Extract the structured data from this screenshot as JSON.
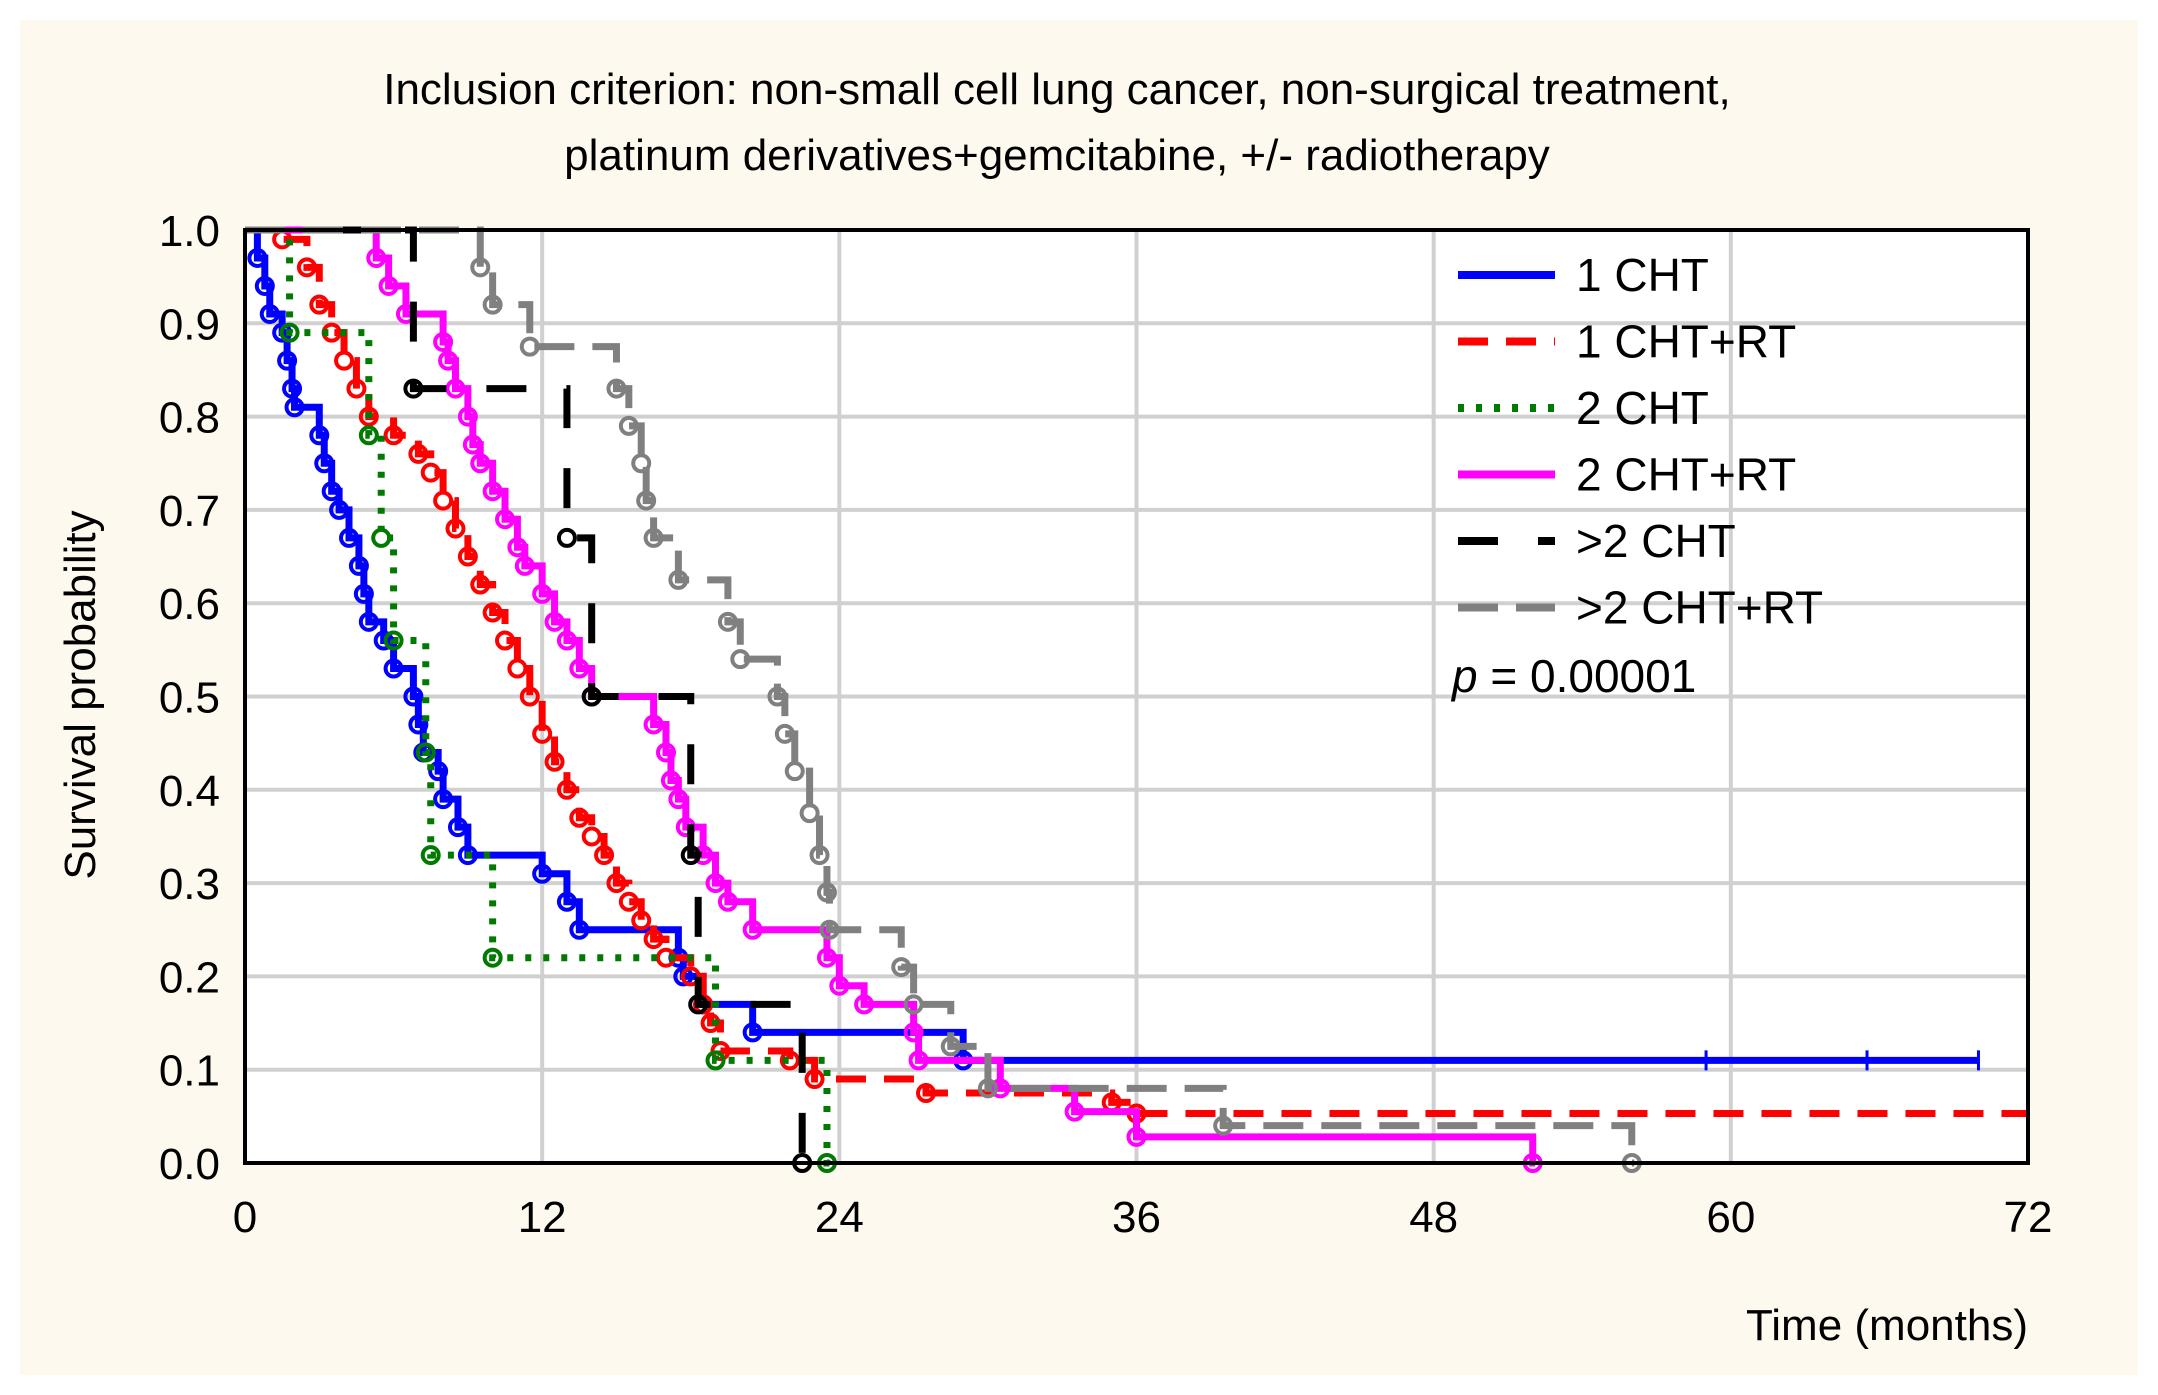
{
  "chart_data": {
    "type": "line",
    "title_lines": [
      "Inclusion criterion: non-small cell lung cancer, non-surgical treatment,",
      "platinum derivatives+gemcitabine, +/- radiotherapy"
    ],
    "xlabel": "Time (months)",
    "ylabel": "Survival probability",
    "xlim": [
      0,
      72
    ],
    "ylim": [
      0,
      1
    ],
    "xticks": [
      "0",
      "12",
      "24",
      "36",
      "48",
      "60",
      "72"
    ],
    "yticks": [
      "0.0",
      "0.1",
      "0.2",
      "0.3",
      "0.4",
      "0.5",
      "0.6",
      "0.7",
      "0.8",
      "0.9",
      "1.0"
    ],
    "grid": true,
    "legend_position": "top-right",
    "annotation": {
      "p_label": "p",
      "p_value": " = 0.00001"
    },
    "series": [
      {
        "name": "1 CHT",
        "color": "#0000ff",
        "dash": "",
        "steps": [
          [
            0,
            1
          ],
          [
            0.5,
            0.97
          ],
          [
            0.8,
            0.94
          ],
          [
            1,
            0.91
          ],
          [
            1.5,
            0.89
          ],
          [
            1.7,
            0.86
          ],
          [
            1.9,
            0.83
          ],
          [
            2,
            0.81
          ],
          [
            3,
            0.78
          ],
          [
            3.2,
            0.75
          ],
          [
            3.5,
            0.72
          ],
          [
            3.8,
            0.7
          ],
          [
            4.2,
            0.67
          ],
          [
            4.6,
            0.64
          ],
          [
            4.8,
            0.61
          ],
          [
            5,
            0.58
          ],
          [
            5.6,
            0.56
          ],
          [
            6,
            0.53
          ],
          [
            6.8,
            0.5
          ],
          [
            7,
            0.47
          ],
          [
            7.2,
            0.44
          ],
          [
            7.8,
            0.42
          ],
          [
            8,
            0.39
          ],
          [
            8.6,
            0.36
          ],
          [
            9,
            0.33
          ],
          [
            12,
            0.31
          ],
          [
            13,
            0.28
          ],
          [
            13.5,
            0.25
          ],
          [
            17.5,
            0.22
          ],
          [
            17.7,
            0.2
          ],
          [
            18.5,
            0.17
          ],
          [
            20.5,
            0.14
          ],
          [
            29,
            0.11
          ],
          [
            70,
            0.11
          ]
        ],
        "censor": [
          59,
          65.5,
          70
        ]
      },
      {
        "name": "1 CHT+RT",
        "color": "#ff0000",
        "dash": "30,18",
        "steps": [
          [
            0,
            1
          ],
          [
            1.5,
            0.99
          ],
          [
            2.5,
            0.96
          ],
          [
            3,
            0.92
          ],
          [
            3.5,
            0.89
          ],
          [
            4,
            0.86
          ],
          [
            4.5,
            0.83
          ],
          [
            5,
            0.8
          ],
          [
            6,
            0.78
          ],
          [
            7,
            0.76
          ],
          [
            7.5,
            0.74
          ],
          [
            8,
            0.71
          ],
          [
            8.5,
            0.68
          ],
          [
            9,
            0.65
          ],
          [
            9.5,
            0.62
          ],
          [
            10,
            0.59
          ],
          [
            10.5,
            0.56
          ],
          [
            11,
            0.53
          ],
          [
            11.5,
            0.5
          ],
          [
            12,
            0.46
          ],
          [
            12.5,
            0.43
          ],
          [
            13,
            0.4
          ],
          [
            13.5,
            0.37
          ],
          [
            14,
            0.35
          ],
          [
            14.5,
            0.33
          ],
          [
            15,
            0.3
          ],
          [
            15.5,
            0.28
          ],
          [
            16,
            0.26
          ],
          [
            16.5,
            0.24
          ],
          [
            17,
            0.22
          ],
          [
            18,
            0.2
          ],
          [
            18.5,
            0.17
          ],
          [
            18.8,
            0.15
          ],
          [
            19.2,
            0.12
          ],
          [
            22,
            0.11
          ],
          [
            23,
            0.09
          ],
          [
            27.5,
            0.075
          ],
          [
            35,
            0.065
          ],
          [
            36,
            0.053
          ],
          [
            72,
            0.053
          ]
        ],
        "censor": []
      },
      {
        "name": "2 CHT",
        "color": "#007a00",
        "dash": "6,12",
        "steps": [
          [
            0,
            1
          ],
          [
            1.8,
            0.89
          ],
          [
            5,
            0.78
          ],
          [
            5.5,
            0.67
          ],
          [
            6,
            0.56
          ],
          [
            7.3,
            0.44
          ],
          [
            7.5,
            0.33
          ],
          [
            10,
            0.22
          ],
          [
            19,
            0.11
          ],
          [
            23.5,
            0
          ],
          [
            23.6,
            0
          ]
        ],
        "censor": []
      },
      {
        "name": "2 CHT+RT",
        "color": "#ff00ff",
        "dash": "",
        "steps": [
          [
            0,
            1
          ],
          [
            5.3,
            0.97
          ],
          [
            5.8,
            0.94
          ],
          [
            6.5,
            0.91
          ],
          [
            8,
            0.88
          ],
          [
            8.2,
            0.86
          ],
          [
            8.5,
            0.83
          ],
          [
            9,
            0.8
          ],
          [
            9.2,
            0.77
          ],
          [
            9.5,
            0.75
          ],
          [
            10,
            0.72
          ],
          [
            10.5,
            0.69
          ],
          [
            11,
            0.66
          ],
          [
            11.3,
            0.64
          ],
          [
            12,
            0.61
          ],
          [
            12.5,
            0.58
          ],
          [
            13,
            0.56
          ],
          [
            13.5,
            0.53
          ],
          [
            14,
            0.5
          ],
          [
            16.5,
            0.47
          ],
          [
            17,
            0.44
          ],
          [
            17.2,
            0.41
          ],
          [
            17.5,
            0.39
          ],
          [
            17.8,
            0.36
          ],
          [
            18.5,
            0.33
          ],
          [
            19,
            0.3
          ],
          [
            19.5,
            0.28
          ],
          [
            20.5,
            0.25
          ],
          [
            23.5,
            0.22
          ],
          [
            24,
            0.19
          ],
          [
            25,
            0.17
          ],
          [
            27,
            0.14
          ],
          [
            27.2,
            0.11
          ],
          [
            30.5,
            0.08
          ],
          [
            33.5,
            0.055
          ],
          [
            36,
            0.028
          ],
          [
            52,
            0
          ],
          [
            52.1,
            0
          ]
        ],
        "censor": []
      },
      {
        "name": ">2 CHT",
        "color": "#000000",
        "dash": "40,40",
        "steps": [
          [
            0,
            1
          ],
          [
            6.8,
            0.83
          ],
          [
            13,
            0.67
          ],
          [
            14,
            0.5
          ],
          [
            18,
            0.33
          ],
          [
            18.3,
            0.17
          ],
          [
            22.5,
            0
          ],
          [
            22.6,
            0
          ]
        ],
        "censor": []
      },
      {
        "name": ">2 CHT+RT",
        "color": "#808080",
        "dash": "40,18",
        "steps": [
          [
            0,
            1
          ],
          [
            9.5,
            0.96
          ],
          [
            10,
            0.92
          ],
          [
            11.5,
            0.875
          ],
          [
            15,
            0.83
          ],
          [
            15.5,
            0.79
          ],
          [
            16,
            0.75
          ],
          [
            16.2,
            0.71
          ],
          [
            16.5,
            0.67
          ],
          [
            17.5,
            0.625
          ],
          [
            19.5,
            0.58
          ],
          [
            20,
            0.54
          ],
          [
            21.5,
            0.5
          ],
          [
            21.8,
            0.46
          ],
          [
            22.2,
            0.42
          ],
          [
            22.8,
            0.375
          ],
          [
            23.2,
            0.33
          ],
          [
            23.5,
            0.29
          ],
          [
            23.6,
            0.25
          ],
          [
            26.5,
            0.21
          ],
          [
            27,
            0.17
          ],
          [
            28.5,
            0.125
          ],
          [
            30,
            0.08
          ],
          [
            39.5,
            0.04
          ],
          [
            56,
            0
          ],
          [
            56.1,
            0
          ]
        ],
        "censor": []
      }
    ]
  }
}
